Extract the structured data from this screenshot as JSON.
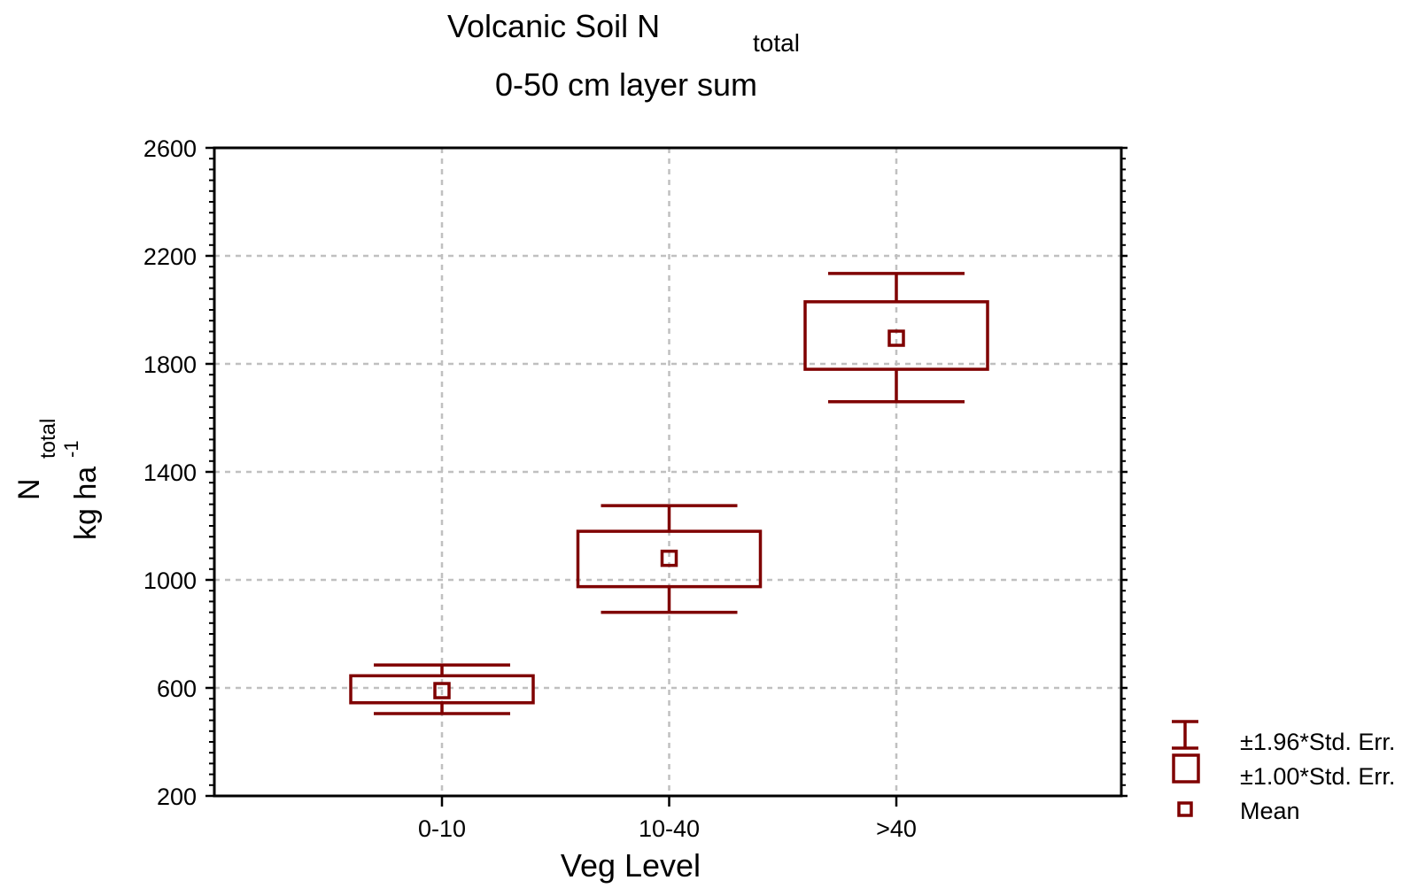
{
  "chart_data": {
    "type": "box",
    "title": "Volcanic Soil N",
    "title_subscript": "total",
    "subtitle": "0-50 cm layer sum",
    "xlabel": "Veg Level",
    "ylabel_line1": "N",
    "ylabel_line1_sub": "total",
    "ylabel_line2": "kg ha",
    "ylabel_line2_sup": "-1",
    "ylim": [
      200,
      2600
    ],
    "yticks": [
      "200",
      "600",
      "1000",
      "1400",
      "1800",
      "2200",
      "2600"
    ],
    "yminor_step": 40,
    "categories": [
      "0-10",
      "10-40",
      ">40"
    ],
    "mean": [
      590,
      1080,
      1895
    ],
    "box_low": [
      545,
      975,
      1780
    ],
    "box_high": [
      645,
      1180,
      2030
    ],
    "whisker_low": [
      505,
      880,
      1660
    ],
    "whisker_high": [
      685,
      1275,
      2135
    ],
    "grid": true,
    "legend_position": "bottom-right",
    "legend": [
      "±1.96*Std. Err.",
      "±1.00*Std. Err.",
      "Mean"
    ],
    "color": "#7f0000"
  }
}
